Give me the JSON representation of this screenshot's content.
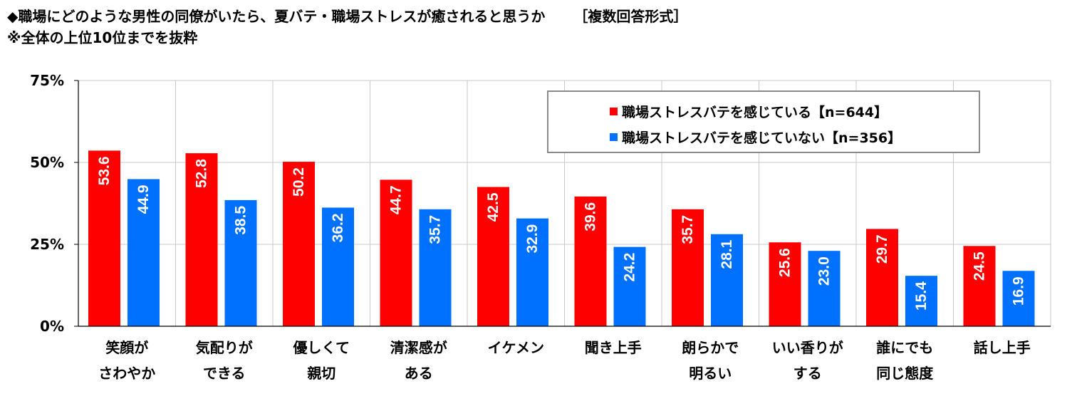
{
  "title": {
    "line1": "◆職場にどのような男性の同僚がいたら、夏バテ・職場ストレスが癒されると思うか",
    "format": "［複数回答形式］",
    "line2": "※全体の上位10位までを抜粋"
  },
  "colors": {
    "series1": "#ff0000",
    "series2": "#0070ff",
    "grid": "#c8c8c8",
    "axis": "#000000"
  },
  "chart_data": {
    "type": "bar",
    "categories": [
      [
        "笑顔が",
        "さわやか"
      ],
      [
        "気配りが",
        "できる"
      ],
      [
        "優しくて",
        "親切"
      ],
      [
        "清潔感が",
        "ある"
      ],
      [
        "イケメン"
      ],
      [
        "聞き上手"
      ],
      [
        "朗らかで",
        "明るい"
      ],
      [
        "いい香りが",
        "する"
      ],
      [
        "誰にでも",
        "同じ態度"
      ],
      [
        "話し上手"
      ]
    ],
    "series": [
      {
        "name": "職場ストレスバテを感じている【n=644】",
        "values": [
          53.6,
          52.8,
          50.2,
          44.7,
          42.5,
          39.6,
          35.7,
          25.6,
          29.7,
          24.5
        ]
      },
      {
        "name": "職場ストレスバテを感じていない【n=356】",
        "values": [
          44.9,
          38.5,
          36.2,
          35.7,
          32.9,
          24.2,
          28.1,
          23.0,
          15.4,
          16.9
        ]
      }
    ],
    "ylim": [
      0,
      75
    ],
    "yticks": [
      {
        "value": 0,
        "label": "0%"
      },
      {
        "value": 25,
        "label": "25%"
      },
      {
        "value": 50,
        "label": "50%"
      },
      {
        "value": 75,
        "label": "75%"
      }
    ],
    "legend_position": "top-right",
    "value_labels": "inside-top-rotated"
  }
}
